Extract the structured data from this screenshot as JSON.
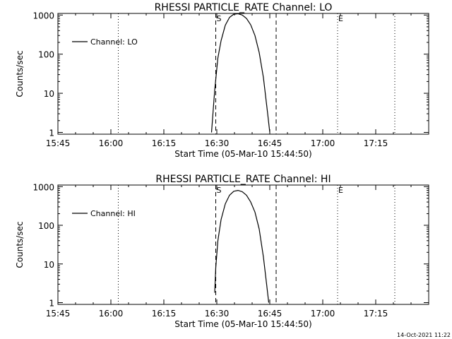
{
  "footer": {
    "timestamp": "14-Oct-2021 11:22"
  },
  "colors": {
    "background": "#ffffff",
    "ink": "#000000"
  },
  "chart_data": [
    {
      "type": "line",
      "title": "RHESSI PARTICLE_RATE Channel: LO",
      "xlabel": "Start Time (05-Mar-10 15:44:50)",
      "ylabel": "Counts/sec",
      "yscale": "log",
      "xlim": [
        15.75,
        17.5
      ],
      "ylim": [
        0.9,
        1100
      ],
      "x_ticks": [
        {
          "x": 15.75,
          "label": "15:45"
        },
        {
          "x": 16.0,
          "label": "16:00"
        },
        {
          "x": 16.25,
          "label": "16:15"
        },
        {
          "x": 16.5,
          "label": "16:30"
        },
        {
          "x": 16.75,
          "label": "16:45"
        },
        {
          "x": 17.0,
          "label": "17:00"
        },
        {
          "x": 17.25,
          "label": "17:15"
        }
      ],
      "y_ticks": [
        {
          "y": 1,
          "label": "1"
        },
        {
          "y": 10,
          "label": "10"
        },
        {
          "y": 100,
          "label": "100"
        },
        {
          "y": 1000,
          "label": "1000"
        }
      ],
      "legend": {
        "label": "Channel: LO",
        "position": "top-left"
      },
      "markers": [
        {
          "x": 16.495,
          "label": "S",
          "style": "dashed"
        },
        {
          "x": 16.78,
          "label": "",
          "style": "dashed"
        },
        {
          "x": 17.07,
          "label": "E",
          "style": "dotted"
        },
        {
          "x": 16.035,
          "label": "",
          "style": "dotted"
        },
        {
          "x": 17.34,
          "label": "",
          "style": "dotted"
        }
      ],
      "series": [
        {
          "name": "Channel: LO",
          "x": [
            16.475,
            16.49,
            16.505,
            16.52,
            16.54,
            16.56,
            16.58,
            16.6,
            16.62,
            16.64,
            16.66,
            16.68,
            16.7,
            16.72,
            16.74,
            16.75
          ],
          "y": [
            1,
            12,
            80,
            220,
            550,
            870,
            1050,
            1080,
            1000,
            820,
            560,
            300,
            110,
            25,
            3,
            1
          ]
        }
      ]
    },
    {
      "type": "line",
      "title": "RHESSI PARTICLE_RATE Channel: HI",
      "xlabel": "Start Time (05-Mar-10 15:44:50)",
      "ylabel": "Counts/sec",
      "yscale": "log",
      "xlim": [
        15.75,
        17.5
      ],
      "ylim": [
        0.9,
        1100
      ],
      "x_ticks": [
        {
          "x": 15.75,
          "label": "15:45"
        },
        {
          "x": 16.0,
          "label": "16:00"
        },
        {
          "x": 16.25,
          "label": "16:15"
        },
        {
          "x": 16.5,
          "label": "16:30"
        },
        {
          "x": 16.75,
          "label": "16:45"
        },
        {
          "x": 17.0,
          "label": "17:00"
        },
        {
          "x": 17.25,
          "label": "17:15"
        }
      ],
      "y_ticks": [
        {
          "y": 1,
          "label": "1"
        },
        {
          "y": 10,
          "label": "10"
        },
        {
          "y": 100,
          "label": "100"
        },
        {
          "y": 1000,
          "label": "1000"
        }
      ],
      "legend": {
        "label": "Channel: HI",
        "position": "top-left"
      },
      "markers": [
        {
          "x": 16.495,
          "label": "S",
          "style": "dashed"
        },
        {
          "x": 16.78,
          "label": "",
          "style": "dashed"
        },
        {
          "x": 17.07,
          "label": "E",
          "style": "dotted"
        },
        {
          "x": 16.035,
          "label": "",
          "style": "dotted"
        },
        {
          "x": 17.34,
          "label": "",
          "style": "dotted"
        }
      ],
      "series": [
        {
          "name": "Channel: HI",
          "x": [
            16.49,
            16.495,
            16.505,
            16.52,
            16.54,
            16.56,
            16.58,
            16.6,
            16.62,
            16.64,
            16.66,
            16.68,
            16.7,
            16.72,
            16.735,
            16.745
          ],
          "y": [
            1.8,
            8,
            40,
            140,
            360,
            600,
            760,
            800,
            740,
            600,
            400,
            220,
            80,
            15,
            3,
            1
          ]
        }
      ]
    }
  ]
}
